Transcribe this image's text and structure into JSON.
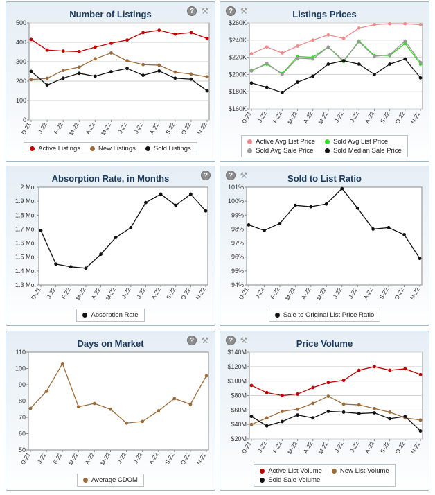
{
  "chart_data": [
    {
      "id": "listings",
      "type": "line",
      "title": "Number of Listings",
      "categories": [
        "D-21",
        "J-22",
        "F-22",
        "M-22",
        "A-22",
        "M-22",
        "J-22",
        "J-22",
        "A-22",
        "S-22",
        "O-22",
        "N-22"
      ],
      "ylim": [
        0,
        500
      ],
      "yticks": [
        0,
        100,
        200,
        300,
        400,
        500
      ],
      "ytick_labels": [
        "0",
        "100",
        "200",
        "300",
        "400",
        "500"
      ],
      "grid": true,
      "series": [
        {
          "name": "Active Listings",
          "color": "#c00000",
          "values": [
            415,
            360,
            355,
            352,
            375,
            395,
            412,
            450,
            462,
            442,
            450,
            420
          ]
        },
        {
          "name": "New Listings",
          "color": "#9c6b3a",
          "values": [
            208,
            214,
            255,
            272,
            315,
            345,
            305,
            285,
            282,
            246,
            236,
            222
          ]
        },
        {
          "name": "Sold Listings",
          "color": "#111111",
          "values": [
            250,
            180,
            215,
            240,
            225,
            248,
            265,
            230,
            252,
            215,
            210,
            150
          ]
        }
      ],
      "legend_columns": 3,
      "icons": [
        "help-icon",
        "settings-icon"
      ]
    },
    {
      "id": "prices",
      "type": "line",
      "title": "Listings Prices",
      "categories": [
        "D-21",
        "J-22",
        "F-22",
        "M-22",
        "A-22",
        "M-22",
        "J-22",
        "J-22",
        "A-22",
        "S-22",
        "O-22",
        "N-22"
      ],
      "ylim": [
        160000,
        260000
      ],
      "yticks": [
        160000,
        180000,
        200000,
        220000,
        240000,
        260000
      ],
      "ytick_labels": [
        "$160K",
        "$180K",
        "$200K",
        "$220K",
        "$240K",
        "$260K"
      ],
      "grid": true,
      "series": [
        {
          "name": "Active Avg List Price",
          "color": "#f08a8a",
          "values": [
            224000,
            232000,
            225000,
            233000,
            240000,
            246000,
            242000,
            254000,
            258000,
            259000,
            259000,
            258000
          ]
        },
        {
          "name": "Sold Avg List Price",
          "color": "#33dd22",
          "values": [
            205000,
            212000,
            201000,
            221000,
            220000,
            232000,
            215000,
            239000,
            222000,
            222000,
            236000,
            212000
          ]
        },
        {
          "name": "Sold Avg Sale Price",
          "color": "#999999",
          "values": [
            204000,
            213000,
            200000,
            219000,
            218000,
            232000,
            216000,
            238000,
            221000,
            223000,
            239000,
            214000
          ]
        },
        {
          "name": "Sold Median Sale Price",
          "color": "#111111",
          "values": [
            190000,
            185000,
            179000,
            191000,
            198000,
            212000,
            216000,
            212000,
            200000,
            212000,
            218000,
            196000
          ]
        }
      ],
      "legend_columns": 2,
      "icons": [
        "help-icon",
        "settings-icon"
      ]
    },
    {
      "id": "absorption",
      "type": "line",
      "title": "Absorption Rate, in Months",
      "categories": [
        "D-21",
        "J-22",
        "F-22",
        "M-22",
        "A-22",
        "M-22",
        "J-22",
        "J-22",
        "A-22",
        "S-22",
        "O-22",
        "N-22"
      ],
      "ylim": [
        1.3,
        2.0
      ],
      "yticks": [
        1.3,
        1.4,
        1.5,
        1.6,
        1.7,
        1.8,
        1.9,
        2.0
      ],
      "ytick_labels": [
        "1.3 Mo.",
        "1.4 Mo.",
        "1.5 Mo.",
        "1.6 Mo.",
        "1.7 Mo.",
        "1.8 Mo.",
        "1.9 Mo.",
        "2 Mo."
      ],
      "grid": false,
      "series": [
        {
          "name": "Absorption Rate",
          "color": "#111111",
          "values": [
            1.69,
            1.45,
            1.43,
            1.42,
            1.52,
            1.64,
            1.71,
            1.89,
            1.95,
            1.87,
            1.95,
            1.83
          ]
        }
      ],
      "legend_columns": 1,
      "icons": [
        "help-icon"
      ]
    },
    {
      "id": "soldtolist",
      "type": "line",
      "title": "Sold to List Ratio",
      "categories": [
        "D-21",
        "J-22",
        "F-22",
        "M-22",
        "A-22",
        "M-22",
        "J-22",
        "J-22",
        "A-22",
        "S-22",
        "O-22",
        "N-22"
      ],
      "ylim": [
        94,
        101
      ],
      "yticks": [
        94,
        95,
        96,
        97,
        98,
        99,
        100,
        101
      ],
      "ytick_labels": [
        "94%",
        "95%",
        "96%",
        "97%",
        "98%",
        "99%",
        "100%",
        "101%"
      ],
      "grid": false,
      "series": [
        {
          "name": "Sale to Original List Price Ratio",
          "color": "#111111",
          "values": [
            98.3,
            97.9,
            98.4,
            99.7,
            99.6,
            99.8,
            100.9,
            99.5,
            98.0,
            98.1,
            97.6,
            95.9
          ]
        }
      ],
      "legend_columns": 1,
      "icons": [
        "help-icon",
        "settings-icon"
      ]
    },
    {
      "id": "dom",
      "type": "line",
      "title": "Days on Market",
      "categories": [
        "D-21",
        "J-22",
        "F-22",
        "M-22",
        "A-22",
        "M-22",
        "J-22",
        "J-22",
        "A-22",
        "S-22",
        "O-22",
        "N-22"
      ],
      "ylim": [
        50,
        110
      ],
      "yticks": [
        50,
        60,
        70,
        80,
        90,
        100,
        110
      ],
      "ytick_labels": [
        "50",
        "60",
        "70",
        "80",
        "90",
        "100",
        "110"
      ],
      "grid": false,
      "series": [
        {
          "name": "Average CDOM",
          "color": "#9c6b3a",
          "values": [
            75.5,
            86,
            103,
            76.5,
            78.5,
            75,
            66.5,
            67.5,
            74,
            81.5,
            78,
            95.5
          ]
        }
      ],
      "legend_columns": 1,
      "icons": [
        "help-icon",
        "settings-icon"
      ]
    },
    {
      "id": "volume",
      "type": "line",
      "title": "Price Volume",
      "categories": [
        "D-21",
        "J-22",
        "F-22",
        "M-22",
        "A-22",
        "M-22",
        "J-22",
        "J-22",
        "A-22",
        "S-22",
        "O-22",
        "N-22"
      ],
      "ylim": [
        20,
        140
      ],
      "yticks": [
        20,
        40,
        60,
        80,
        100,
        120,
        140
      ],
      "ytick_labels": [
        "$20M",
        "$40M",
        "$60M",
        "$80M",
        "$100M",
        "$120M",
        "$140M"
      ],
      "grid": true,
      "series": [
        {
          "name": "Active List Volume",
          "color": "#c00000",
          "values": [
            94,
            84,
            80,
            82,
            91,
            98,
            101,
            115,
            120,
            115,
            117,
            109
          ]
        },
        {
          "name": "New List Volume",
          "color": "#9c6b3a",
          "values": [
            40,
            49,
            58,
            61,
            69,
            79,
            68,
            67,
            62,
            57,
            49,
            46
          ]
        },
        {
          "name": "Sold Sale Volume",
          "color": "#111111",
          "values": [
            51,
            38,
            44,
            53,
            49,
            58,
            57,
            55,
            56,
            48,
            51,
            31
          ]
        }
      ],
      "legend_columns": 2,
      "icons": [
        "help-icon",
        "settings-icon"
      ]
    }
  ]
}
